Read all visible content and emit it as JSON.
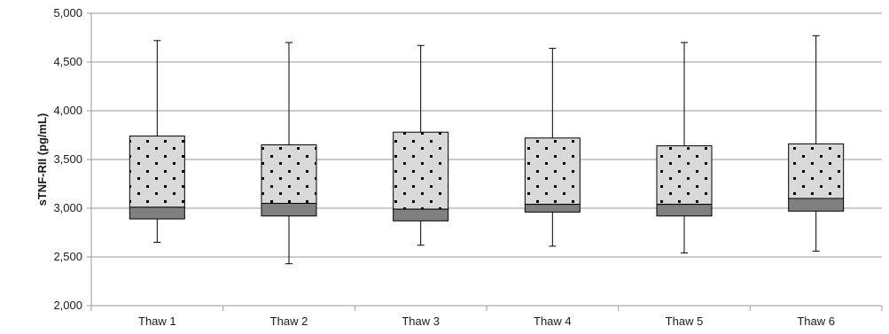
{
  "chart_data": {
    "type": "box",
    "title": "",
    "xlabel": "",
    "ylabel": "sTNF-RII (pg/mL)",
    "ylim": [
      2000,
      5000
    ],
    "yticks": [
      2000,
      2500,
      3000,
      3500,
      4000,
      4500,
      5000
    ],
    "ytick_labels": [
      "2,000",
      "2,500",
      "3,000",
      "3,500",
      "4,000",
      "4,500",
      "5,000"
    ],
    "grid": "horizontal",
    "legend": "none",
    "categories": [
      "Thaw 1",
      "Thaw 2",
      "Thaw 3",
      "Thaw 4",
      "Thaw 5",
      "Thaw 6"
    ],
    "boxes": [
      {
        "min": 2650,
        "q1": 2890,
        "median": 3010,
        "q3": 3740,
        "max": 4720
      },
      {
        "min": 2430,
        "q1": 2920,
        "median": 3050,
        "q3": 3650,
        "max": 4700
      },
      {
        "min": 2620,
        "q1": 2870,
        "median": 2990,
        "q3": 3780,
        "max": 4670
      },
      {
        "min": 2610,
        "q1": 2960,
        "median": 3040,
        "q3": 3720,
        "max": 4640
      },
      {
        "min": 2540,
        "q1": 2920,
        "median": 3040,
        "q3": 3640,
        "max": 4700
      },
      {
        "min": 2560,
        "q1": 2970,
        "median": 3100,
        "q3": 3660,
        "max": 4770
      }
    ],
    "colors": {
      "upper_box_fill": "#d9d9d9",
      "lower_box_fill": "#808080",
      "box_stroke": "#000000",
      "grid": "#999999",
      "dots": "#000000"
    }
  }
}
